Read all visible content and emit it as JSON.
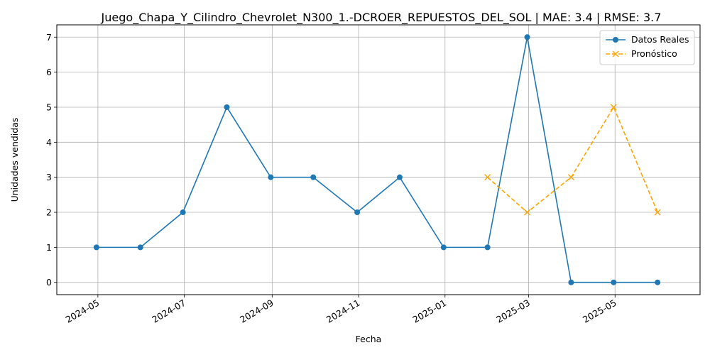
{
  "chart_data": {
    "type": "line",
    "title": "Juego_Chapa_Y_Cilindro_Chevrolet_N300_1.-DCROER_REPUESTOS_DEL_SOL | MAE: 3.4 | RMSE: 3.7",
    "xlabel": "Fecha",
    "ylabel": "Unidades vendidas",
    "x_axis_type": "date",
    "xlim": [
      "2024-04-02",
      "2025-06-30"
    ],
    "ylim": [
      -0.35,
      7.35
    ],
    "x_ticks": [
      "2024-05-01",
      "2024-07-01",
      "2024-09-01",
      "2024-11-01",
      "2025-01-01",
      "2025-03-01",
      "2025-05-01"
    ],
    "x_tick_labels": [
      "2024-05",
      "2024-07",
      "2024-09",
      "2024-11",
      "2025-01",
      "2025-03",
      "2025-05"
    ],
    "y_ticks": [
      0,
      1,
      2,
      3,
      4,
      5,
      6,
      7
    ],
    "grid": true,
    "legend_position": "top-right",
    "series": [
      {
        "name": "Datos Reales",
        "color": "#1f77b4",
        "line_style": "solid",
        "marker": "circle",
        "x": [
          "2024-04-30",
          "2024-05-31",
          "2024-06-30",
          "2024-07-31",
          "2024-08-31",
          "2024-09-30",
          "2024-10-31",
          "2024-11-30",
          "2024-12-31",
          "2025-01-31",
          "2025-02-28",
          "2025-03-31",
          "2025-04-30",
          "2025-05-31"
        ],
        "y": [
          1,
          1,
          2,
          5,
          3,
          3,
          2,
          3,
          1,
          1,
          7,
          0,
          0,
          0
        ]
      },
      {
        "name": "Pronóstico",
        "color": "#ffa500",
        "line_style": "dashed",
        "marker": "x",
        "x": [
          "2025-01-31",
          "2025-02-28",
          "2025-03-31",
          "2025-04-30",
          "2025-05-31"
        ],
        "y": [
          3,
          2,
          3,
          5,
          2
        ]
      }
    ]
  }
}
